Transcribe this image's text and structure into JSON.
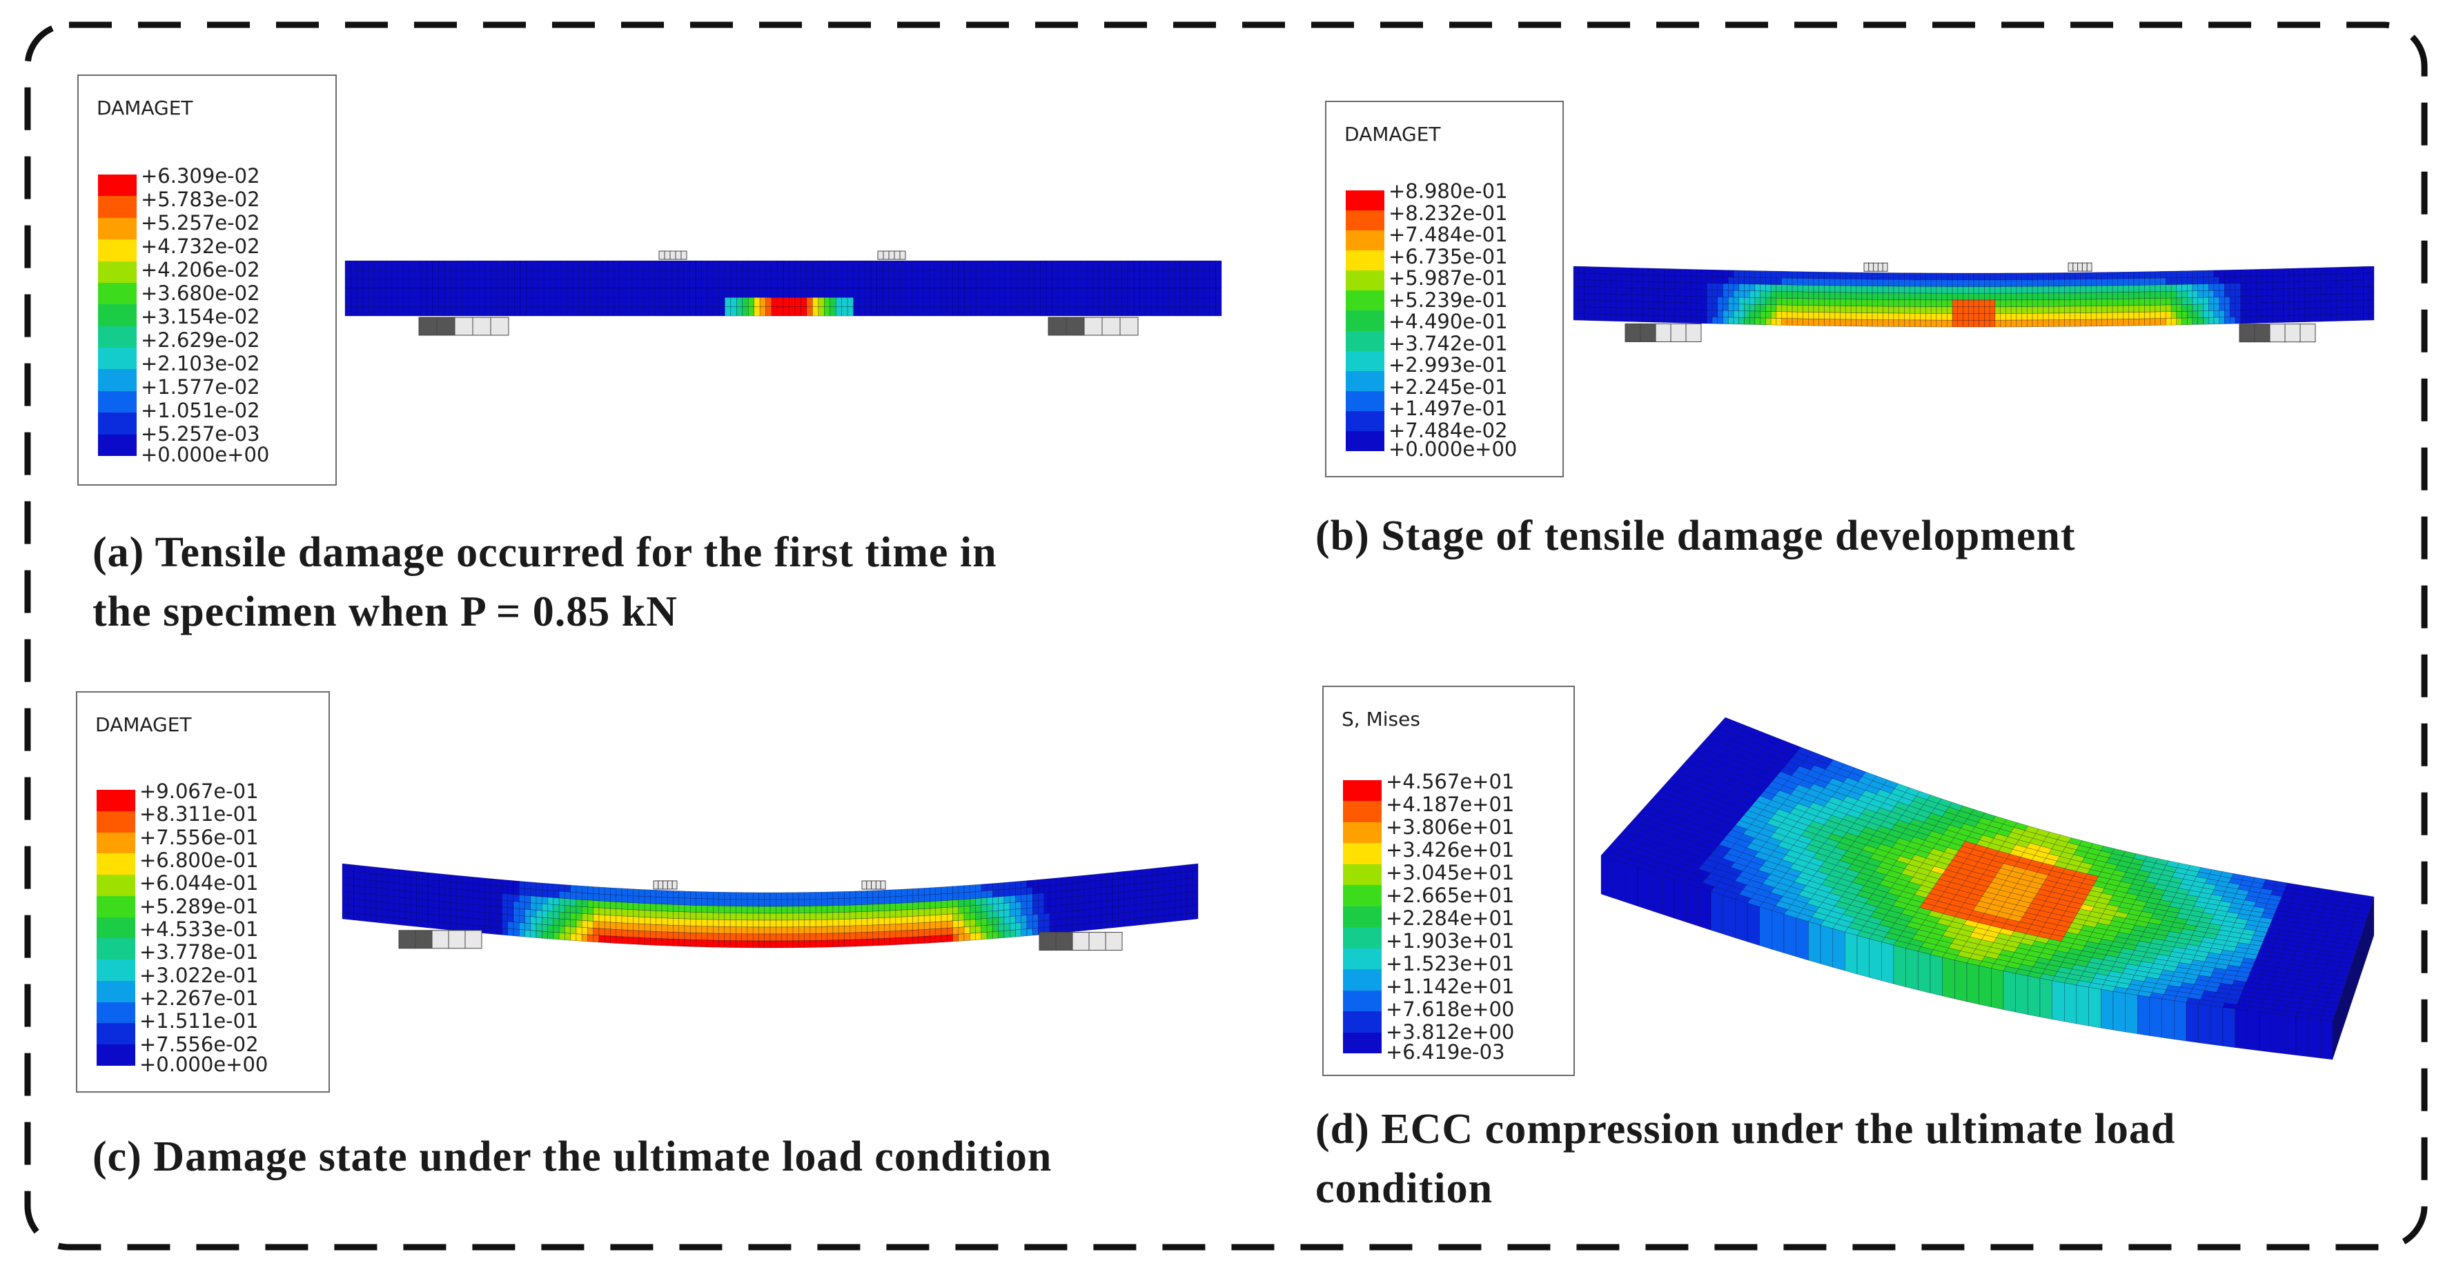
{
  "panels": [
    {
      "id": "a",
      "legend_title": "DAMAGET",
      "legend_values": [
        "+6.309e-02",
        "+5.783e-02",
        "+5.257e-02",
        "+4.732e-02",
        "+4.206e-02",
        "+3.680e-02",
        "+3.154e-02",
        "+2.629e-02",
        "+2.103e-02",
        "+1.577e-02",
        "+1.051e-02",
        "+5.257e-03",
        "+0.000e+00"
      ],
      "caption_lines": [
        "(a) Tensile damage occurred for the first time in",
        "the specimen when P = 0.85 kN"
      ]
    },
    {
      "id": "b",
      "legend_title": "DAMAGET",
      "legend_values": [
        "+8.980e-01",
        "+8.232e-01",
        "+7.484e-01",
        "+6.735e-01",
        "+5.987e-01",
        "+5.239e-01",
        "+4.490e-01",
        "+3.742e-01",
        "+2.993e-01",
        "+2.245e-01",
        "+1.497e-01",
        "+7.484e-02",
        "+0.000e+00"
      ],
      "caption_lines": [
        "(b) Stage of tensile damage development"
      ]
    },
    {
      "id": "c",
      "legend_title": "DAMAGET",
      "legend_values": [
        "+9.067e-01",
        "+8.311e-01",
        "+7.556e-01",
        "+6.800e-01",
        "+6.044e-01",
        "+5.289e-01",
        "+4.533e-01",
        "+3.778e-01",
        "+3.022e-01",
        "+2.267e-01",
        "+1.511e-01",
        "+7.556e-02",
        "+0.000e+00"
      ],
      "caption_lines": [
        "(c) Damage state under the ultimate load condition"
      ]
    },
    {
      "id": "d",
      "legend_title": "S, Mises",
      "legend_values": [
        "+4.567e+01",
        "+4.187e+01",
        "+3.806e+01",
        "+3.426e+01",
        "+3.045e+01",
        "+2.665e+01",
        "+2.284e+01",
        "+1.903e+01",
        "+1.523e+01",
        "+1.142e+01",
        "+7.618e+00",
        "+3.812e+00",
        "+6.419e-03"
      ],
      "caption_lines": [
        "(d) ECC compression under the ultimate load",
        "condition"
      ]
    }
  ],
  "colormap": [
    "#ff0000",
    "#ff5a00",
    "#ffa000",
    "#ffe000",
    "#9ee000",
    "#3cdc1c",
    "#1ccc44",
    "#14cc8c",
    "#14cccc",
    "#0ca0e8",
    "#0a64f0",
    "#0a2cdc",
    "#0a0ac8"
  ],
  "colors": {
    "frame": "#111111",
    "mesh_line": "#000033",
    "support_fill": "#e8e8e8"
  }
}
